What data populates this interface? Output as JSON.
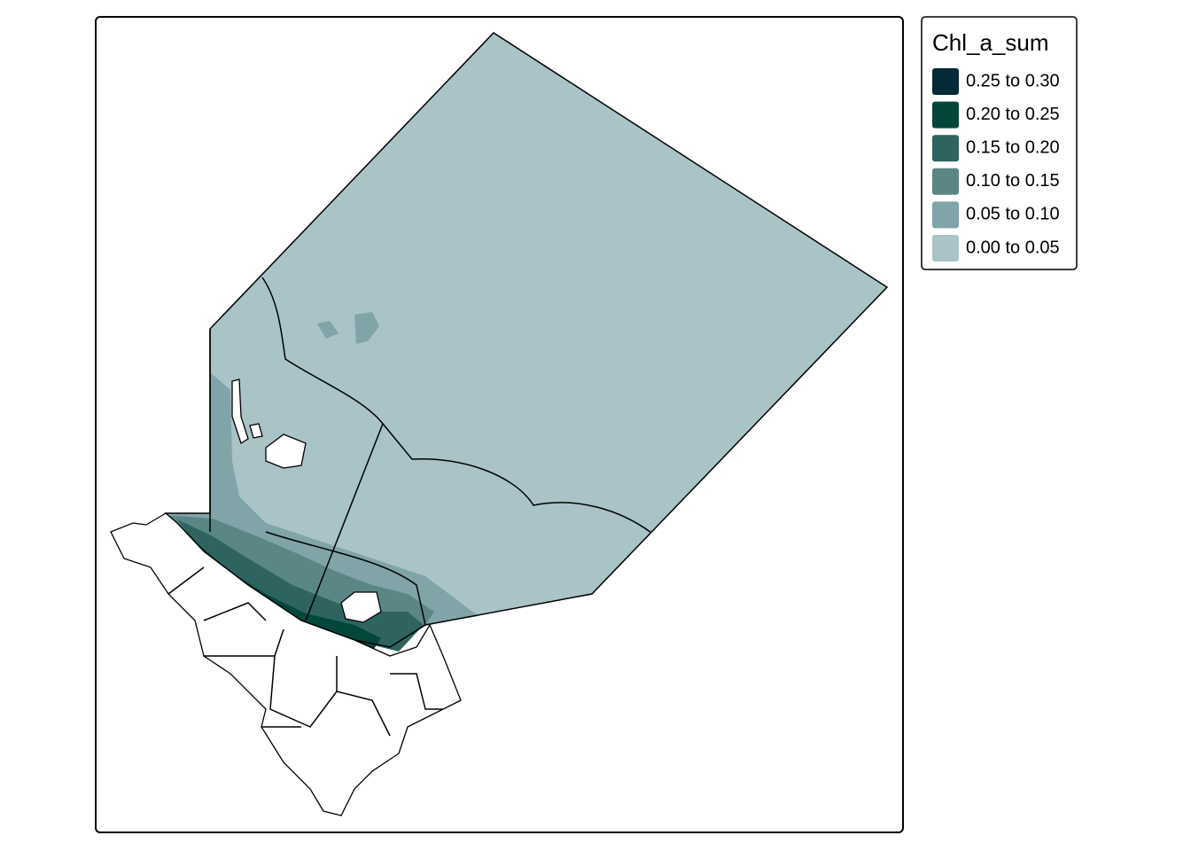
{
  "legend": {
    "title": "Chl_a_sum",
    "items": [
      {
        "label": "0.25 to 0.30",
        "color": "#042a35"
      },
      {
        "label": "0.20 to 0.25",
        "color": "#03473a"
      },
      {
        "label": "0.15 to 0.20",
        "color": "#2e6360"
      },
      {
        "label": "0.10 to 0.15",
        "color": "#5a8785"
      },
      {
        "label": "0.05 to 0.10",
        "color": "#80a4a8"
      },
      {
        "label": "0.00 to 0.05",
        "color": "#a9c3c7"
      }
    ]
  }
}
